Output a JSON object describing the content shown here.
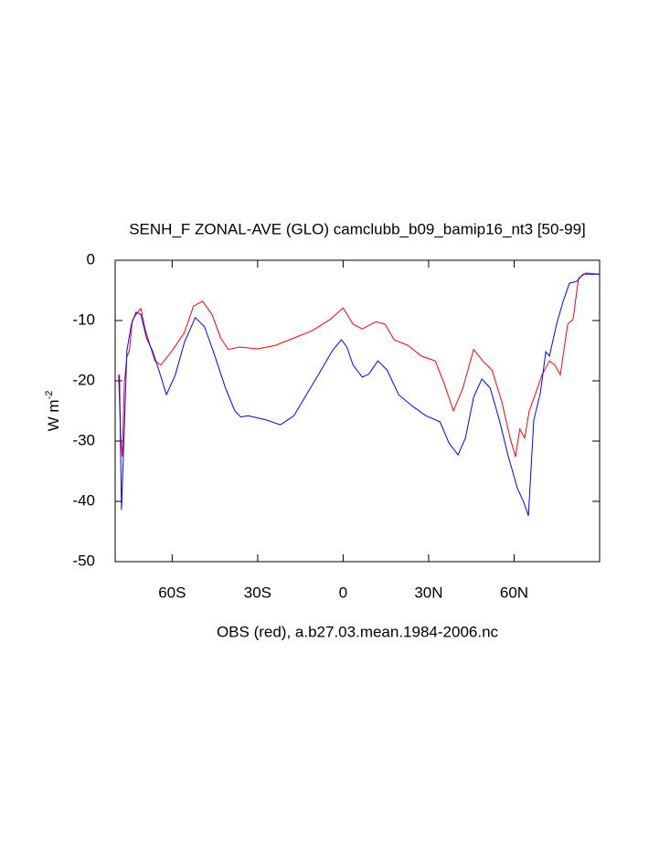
{
  "chart_data": {
    "type": "line",
    "title": "SENH_F ZONAL-AVE (GLO) camclubb_b09_bamip16_nt3 [50-99]",
    "subtitle": "OBS (red), a.b27.03.mean.1984-2006.nc",
    "ylabel": "W m",
    "ylabel_sup": "-2",
    "xlim": [
      -80,
      90
    ],
    "ylim": [
      -50,
      0
    ],
    "xticks": [
      {
        "value": -60,
        "label": "60S"
      },
      {
        "value": -30,
        "label": "30S"
      },
      0,
      {
        "value": 30,
        "label": "30N"
      },
      {
        "value": 60,
        "label": "60N"
      }
    ],
    "yticks": [
      0,
      -10,
      -20,
      -30,
      -40,
      -50
    ],
    "series": [
      {
        "color": "#ff0000",
        "x": [
          -78.8,
          -78,
          -77.5,
          -76.8,
          -75.9,
          -75,
          -74,
          -72.7,
          -71,
          -69.5,
          -67.6,
          -66,
          -64,
          -60,
          -55.7,
          -52.5,
          -49.3,
          -46,
          -43,
          -40.3,
          -36.5,
          -30,
          -23.7,
          -17.3,
          -10.9,
          -4.5,
          0,
          3.5,
          6.7,
          11.5,
          14.7,
          17.9,
          22.7,
          27.5,
          32.3,
          35.5,
          38.7,
          42,
          45.8,
          49,
          52.2,
          55.7,
          58.6,
          60.5,
          62,
          63.7,
          65.3,
          67.6,
          69.8,
          72.4,
          74.3,
          76.2,
          78.8,
          80.7,
          82.6,
          85.2,
          90
        ],
        "values": [
          -19,
          -29.5,
          -32.6,
          -20.5,
          -16,
          -15,
          -10,
          -9,
          -8,
          -11.4,
          -14.4,
          -16.7,
          -17.4,
          -15,
          -12,
          -7.6,
          -6.8,
          -9,
          -12.9,
          -14.8,
          -14.4,
          -14.7,
          -14.1,
          -12.9,
          -11.7,
          -9.8,
          -7.9,
          -10.6,
          -11.4,
          -10.2,
          -10.6,
          -13.2,
          -14.1,
          -15.9,
          -16.7,
          -20.5,
          -25,
          -21.2,
          -14.8,
          -16.7,
          -18.2,
          -23.5,
          -29.5,
          -32.6,
          -28,
          -29.5,
          -25,
          -22,
          -19,
          -16.7,
          -17.4,
          -19,
          -10.6,
          -9.8,
          -3,
          -2.1,
          -2.3
        ]
      },
      {
        "color": "#0000ff",
        "x": [
          -78.5,
          -77.8,
          -76.8,
          -75.9,
          -74.3,
          -72.7,
          -71,
          -69,
          -66.9,
          -64.7,
          -62,
          -58.9,
          -55.7,
          -51.9,
          -48.7,
          -45.5,
          -41.3,
          -38,
          -35.9,
          -33.3,
          -26.9,
          -22,
          -17.3,
          -12.5,
          -7.7,
          -3.8,
          -0.6,
          1.3,
          3.5,
          6.7,
          9,
          12.2,
          15.4,
          19.5,
          24.3,
          29.1,
          34,
          37.1,
          40.3,
          42.9,
          45.8,
          48.7,
          51.6,
          54.8,
          58,
          61.2,
          63.4,
          65,
          66.9,
          69.2,
          71.1,
          72.4,
          74.9,
          77.2,
          79.4,
          82,
          84.2,
          90
        ],
        "values": [
          -19,
          -41.4,
          -28,
          -15,
          -10.6,
          -8.6,
          -9,
          -12.9,
          -15,
          -18.2,
          -22.3,
          -19,
          -13.6,
          -9.5,
          -11,
          -15.2,
          -21.2,
          -25,
          -26,
          -25.8,
          -26.5,
          -27.3,
          -25.8,
          -22,
          -18.2,
          -15,
          -13.2,
          -14.4,
          -17.4,
          -19.4,
          -18.9,
          -16.7,
          -18.2,
          -22.3,
          -24.2,
          -25.8,
          -26.8,
          -30.3,
          -32.3,
          -29.5,
          -22.7,
          -19.7,
          -21.2,
          -26.5,
          -32.6,
          -37.9,
          -40.2,
          -42.4,
          -26.5,
          -22,
          -15.2,
          -15.9,
          -10.6,
          -6.8,
          -3.8,
          -3.5,
          -2.3,
          -2.3
        ]
      }
    ]
  }
}
